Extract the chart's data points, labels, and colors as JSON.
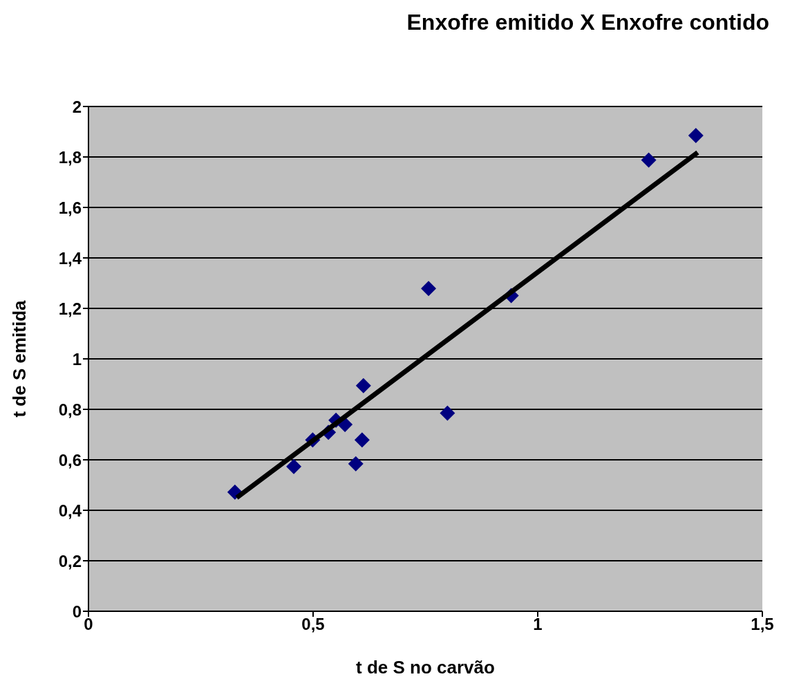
{
  "chart_data": {
    "type": "scatter",
    "title": "Enxofre emitido X Enxofre contido",
    "xlabel": "t de S no carvão",
    "ylabel": "t de S emitida",
    "xlim": [
      0,
      1.5
    ],
    "xticks": [
      0,
      {
        "value": 0.5,
        "label": "0,5"
      },
      1,
      {
        "value": 1.5,
        "label": "1,5"
      }
    ],
    "ylim": [
      0,
      2
    ],
    "yticks": [
      0,
      {
        "value": 0.2,
        "label": "0,2"
      },
      {
        "value": 0.4,
        "label": "0,4"
      },
      {
        "value": 0.6,
        "label": "0,6"
      },
      {
        "value": 0.8,
        "label": "0,8"
      },
      1,
      {
        "value": 1.2,
        "label": "1,2"
      },
      {
        "value": 1.4,
        "label": "1,4"
      },
      {
        "value": 1.6,
        "label": "1,6"
      },
      {
        "value": 1.8,
        "label": "1,8"
      },
      2
    ],
    "grid": "y",
    "series": [
      {
        "marker": "diamond",
        "color": "#000080",
        "x": [
          0.326,
          0.457,
          0.499,
          0.534,
          0.551,
          0.571,
          0.595,
          0.609,
          0.612,
          0.757,
          0.799,
          0.941,
          1.247,
          1.352
        ],
        "values": [
          0.472,
          0.573,
          0.679,
          0.709,
          0.757,
          0.74,
          0.584,
          0.679,
          0.894,
          1.279,
          0.785,
          1.251,
          1.788,
          1.885
        ]
      },
      {
        "type": "line",
        "marker": "none",
        "color": "#000000",
        "x": [
          0.33,
          1.356
        ],
        "values": [
          0.45,
          1.818
        ]
      }
    ]
  }
}
